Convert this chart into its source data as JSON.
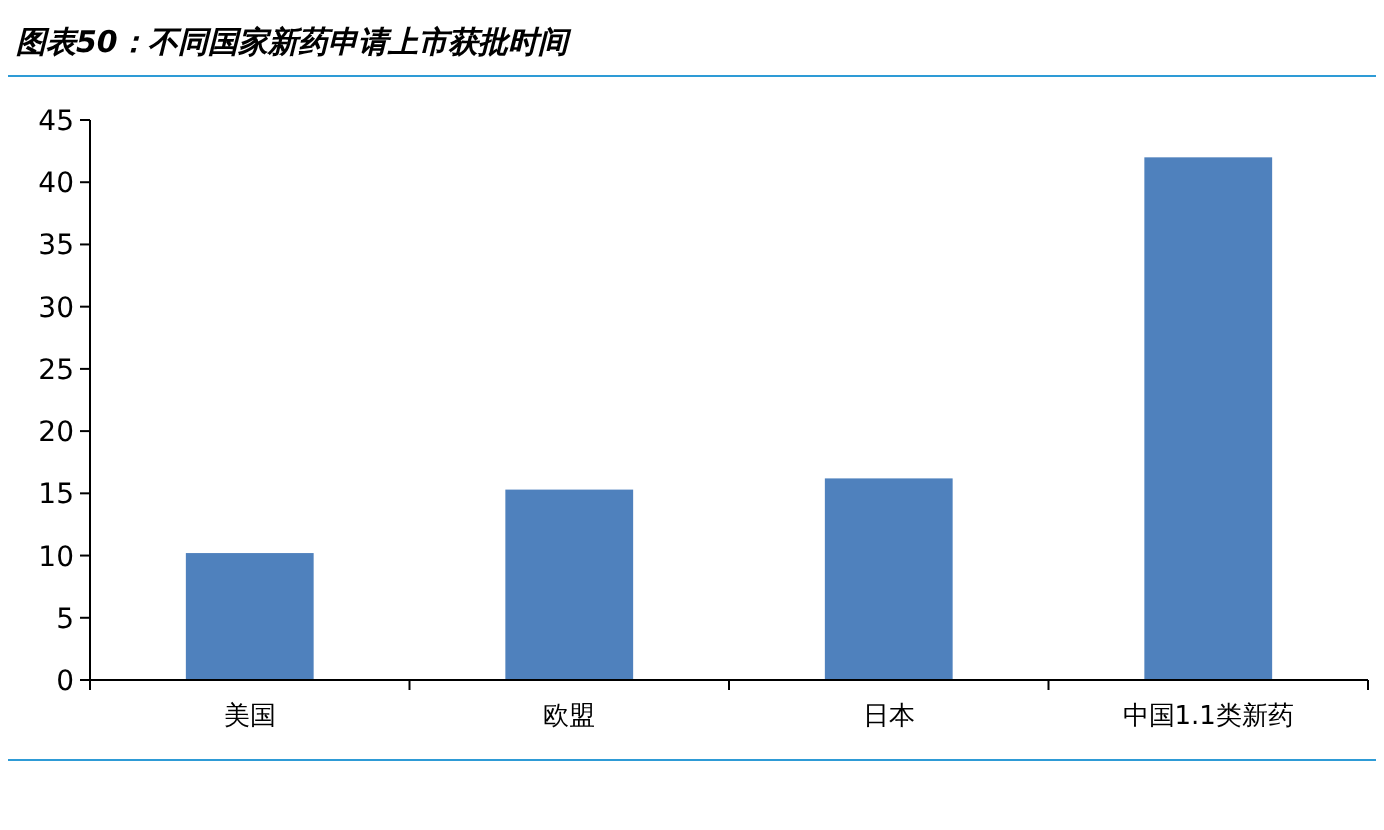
{
  "chart_data": {
    "type": "bar",
    "title": "图表50：不同国家新药申请上市获批时间",
    "categories": [
      "美国",
      "欧盟",
      "日本",
      "中国1.1类新药"
    ],
    "values": [
      10.2,
      15.3,
      16.2,
      42
    ],
    "color": "#4f81bd",
    "ylim": [
      0,
      45
    ],
    "yticks": [
      0,
      5,
      10,
      15,
      20,
      25,
      30,
      35,
      40,
      45
    ],
    "grid": false
  }
}
